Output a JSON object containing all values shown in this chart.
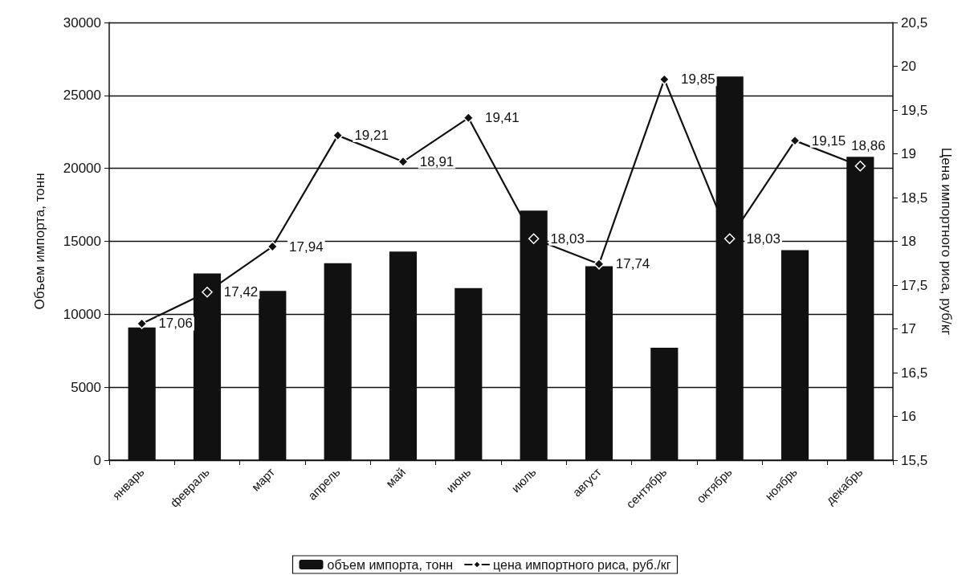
{
  "chart_data": {
    "type": "bar",
    "categories": [
      "январь",
      "февраль",
      "март",
      "апрель",
      "май",
      "июнь",
      "июль",
      "август",
      "сентябрь",
      "октябрь",
      "ноябрь",
      "декабрь"
    ],
    "series": [
      {
        "name": "объем импорта, тонн",
        "color": "#111111",
        "values": [
          9100,
          12800,
          11600,
          13500,
          14300,
          11800,
          17100,
          13300,
          7700,
          26300,
          14400,
          20800
        ]
      },
      {
        "name": "цена импортного риса, руб./кг",
        "type": "line",
        "axis": "y2",
        "color": "#111111",
        "values": [
          17.06,
          17.42,
          17.94,
          19.21,
          18.91,
          19.41,
          18.03,
          17.74,
          19.85,
          18.03,
          19.15,
          18.86
        ],
        "value_labels": [
          "17,06",
          "17,42",
          "17,94",
          "19,21",
          "18,91",
          "19,41",
          "18,03",
          "17,74",
          "19,85",
          "18,03",
          "19,15",
          "18,86"
        ]
      }
    ],
    "ylabel": "Объем импорта, тонн",
    "y2label": "Цена импортного риса, руб/кг",
    "ylim": [
      0,
      30000
    ],
    "yticks": [
      0,
      5000,
      10000,
      15000,
      20000,
      25000,
      30000
    ],
    "y2lim": [
      15.5,
      20.5
    ],
    "y2ticks": [
      {
        "value": 15.5,
        "label": "15,5"
      },
      16,
      {
        "value": 16.5,
        "label": "16,5"
      },
      17,
      {
        "value": 17.5,
        "label": "17,5"
      },
      18,
      {
        "value": 18.5,
        "label": "18,5"
      },
      19,
      {
        "value": 19.5,
        "label": "19,5"
      },
      20,
      {
        "value": 20.5,
        "label": "20,5"
      }
    ],
    "grid": "y",
    "legend": "bottom",
    "marker": "diamond",
    "line_style": "solid"
  }
}
